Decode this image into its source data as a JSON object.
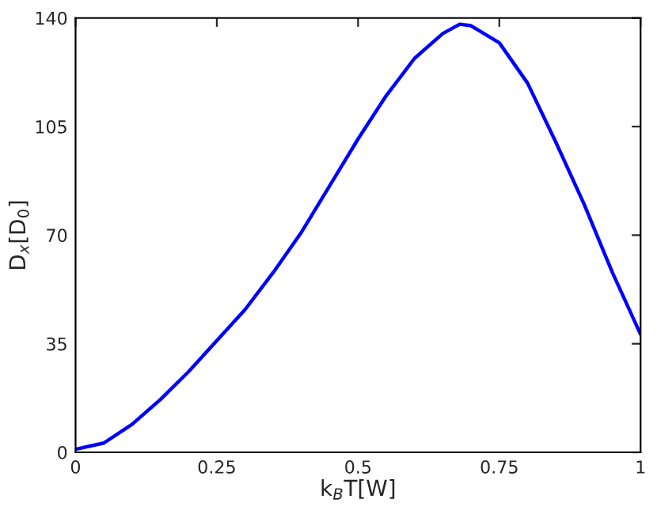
{
  "chart_data": {
    "type": "line",
    "xlabel": "k$_{B}$T[W]",
    "ylabel": "D$_{x}$[D$_{0}$]",
    "x": [
      0,
      0.05,
      0.1,
      0.15,
      0.2,
      0.25,
      0.3,
      0.35,
      0.4,
      0.45,
      0.5,
      0.55,
      0.6,
      0.65,
      0.68,
      0.7,
      0.75,
      0.8,
      0.85,
      0.9,
      0.95,
      1.0
    ],
    "series": [
      {
        "color": "#0000ff",
        "values": [
          1,
          3,
          9,
          17,
          26,
          36,
          46,
          58,
          71,
          86,
          101,
          115,
          127,
          135,
          138,
          137.5,
          132,
          119,
          100,
          80,
          58,
          38
        ]
      }
    ],
    "xlim": [
      0,
      1
    ],
    "ylim": [
      0,
      140
    ],
    "xticks": [
      0,
      0.25,
      0.5,
      0.75,
      1
    ],
    "yticks": [
      0,
      35,
      70,
      105,
      140
    ],
    "grid": false,
    "marker": "none",
    "line_style": "solid"
  }
}
